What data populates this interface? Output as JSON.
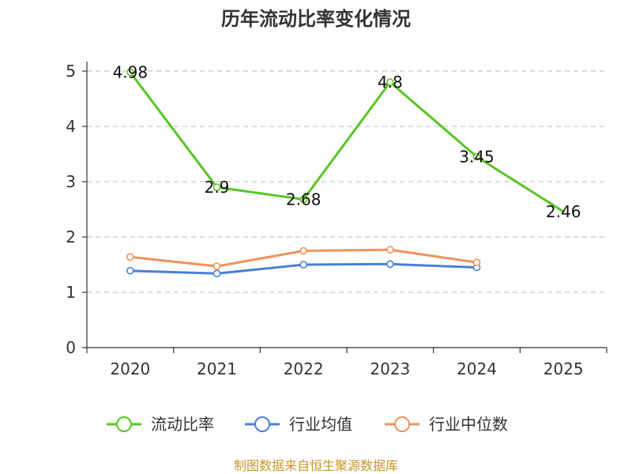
{
  "chart_data": {
    "type": "line",
    "title": "历年流动比率变化情况",
    "categories": [
      "2020",
      "2021",
      "2022",
      "2023",
      "2024",
      "2025"
    ],
    "ylim": [
      0,
      5
    ],
    "yticks": [
      0,
      1,
      2,
      3,
      4,
      5
    ],
    "grid": true,
    "legend_position": "bottom",
    "series": [
      {
        "name": "流动比率",
        "color": "#5bc424",
        "values": [
          4.98,
          2.9,
          2.68,
          4.8,
          3.45,
          2.46
        ],
        "labels": [
          "4.98",
          "2.9",
          "2.68",
          "4.8",
          "3.45",
          "2.46"
        ],
        "show_labels": true,
        "markers": [
          true,
          true,
          true,
          true,
          true,
          false
        ]
      },
      {
        "name": "行业均值",
        "color": "#4a7fd6",
        "values": [
          1.39,
          1.34,
          1.5,
          1.51,
          1.45,
          null
        ],
        "show_labels": false,
        "markers": [
          true,
          true,
          true,
          true,
          true,
          false
        ]
      },
      {
        "name": "行业中位数",
        "color": "#f2915a",
        "values": [
          1.64,
          1.47,
          1.75,
          1.77,
          1.54,
          null
        ],
        "show_labels": false,
        "markers": [
          true,
          true,
          true,
          true,
          true,
          false
        ]
      }
    ]
  },
  "source": {
    "text": "制图数据来自恒生聚源数据库",
    "color": "#c8952a"
  }
}
